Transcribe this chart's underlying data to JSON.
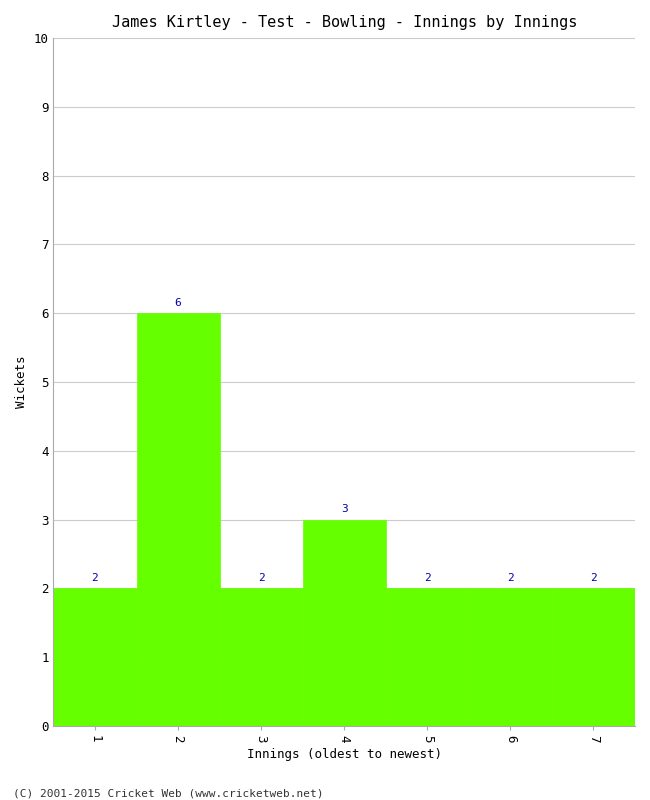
{
  "title": "James Kirtley - Test - Bowling - Innings by Innings",
  "xlabel": "Innings (oldest to newest)",
  "ylabel": "Wickets",
  "categories": [
    "1",
    "2",
    "3",
    "4",
    "5",
    "6",
    "7"
  ],
  "values": [
    2,
    6,
    2,
    3,
    2,
    2,
    2
  ],
  "bar_color": "#66ff00",
  "bar_edge_color": "#66ff00",
  "ylim": [
    0,
    10
  ],
  "yticks": [
    0,
    1,
    2,
    3,
    4,
    5,
    6,
    7,
    8,
    9,
    10
  ],
  "background_color": "#ffffff",
  "grid_color": "#cccccc",
  "title_fontsize": 11,
  "axis_label_fontsize": 9,
  "tick_fontsize": 9,
  "annotation_fontsize": 8,
  "annotation_color": "#0000aa",
  "footer": "(C) 2001-2015 Cricket Web (www.cricketweb.net)",
  "footer_fontsize": 8
}
